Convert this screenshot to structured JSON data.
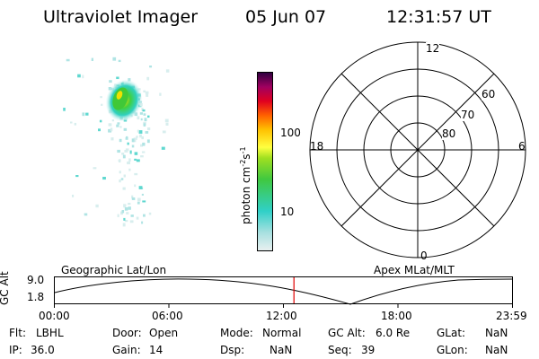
{
  "header": {
    "instrument": "Ultraviolet Imager",
    "date": "05 Jun 07",
    "time": "12:31:57 UT"
  },
  "colorbar": {
    "unit_label_prefix": "photon cm",
    "unit_exp_1": "-2",
    "unit_mid": "s",
    "unit_exp_2": "-1",
    "tick_100": "100",
    "tick_10": "10"
  },
  "polar": {
    "mlt_top": "12",
    "mlt_left": "18",
    "mlt_right": "6",
    "mlt_bottom": "0",
    "lat_60": "60",
    "lat_70": "70",
    "lat_80": "80"
  },
  "timeline": {
    "y_label": "GC Alt",
    "y_max": "9.0",
    "y_min": "1.8",
    "left_title": "Geographic Lat/Lon",
    "right_title": "Apex MLat/MLT",
    "x_ticks": [
      "00:00",
      "06:00",
      "12:00",
      "18:00",
      "23:59"
    ],
    "current_time_fraction": 0.522
  },
  "info": {
    "flt_label": "Flt:",
    "flt_value": "LBHL",
    "ip_label": "IP:",
    "ip_value": "36.0",
    "door_label": "Door:",
    "door_value": "Open",
    "gain_label": "Gain:",
    "gain_value": "14",
    "mode_label": "Mode:",
    "mode_value": "Normal",
    "dsp_label": "Dsp:",
    "dsp_value": "NaN",
    "gcalt_label": "GC Alt:",
    "gcalt_value": "6.0 Re",
    "seq_label": "Seq:",
    "seq_value": "39",
    "glat_label": "GLat:",
    "glat_value": "NaN",
    "glon_label": "GLon:",
    "glon_value": "NaN"
  },
  "colors": {
    "marker": "#e00000",
    "background": "#ffffff",
    "foreground": "#000000"
  }
}
